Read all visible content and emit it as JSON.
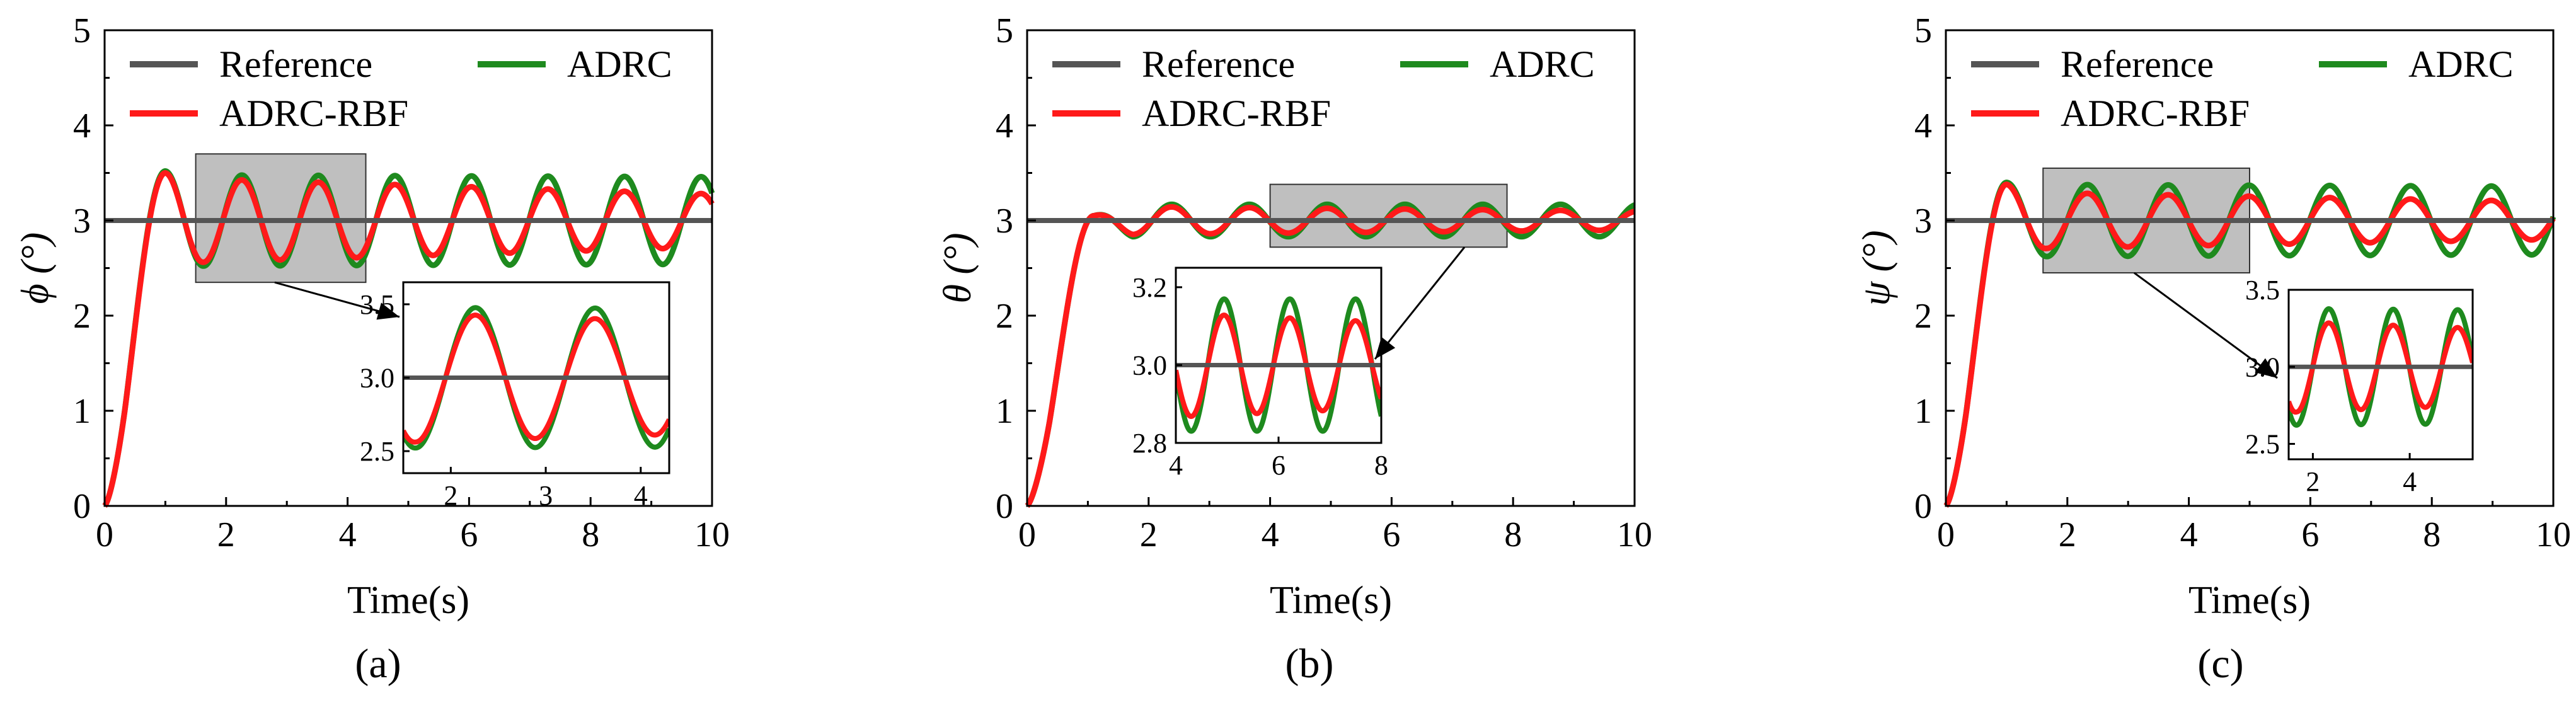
{
  "colors": {
    "reference": "#555555",
    "adrc": "#1e8a1e",
    "adrc_rbf": "#ff1a1a",
    "highlight": "#bfbfbf"
  },
  "chart_data": [
    {
      "id": "a",
      "panel_label": "(a)",
      "type": "line",
      "title": "",
      "xlabel": "Time(s)",
      "ylabel": "ϕ (°)",
      "xlim": [
        0,
        10
      ],
      "ylim": [
        0,
        5
      ],
      "xticks": [
        0,
        2,
        4,
        6,
        8,
        10
      ],
      "yticks": [
        0,
        1,
        2,
        3,
        4,
        5
      ],
      "legend": {
        "placement": "top",
        "entries": [
          "Reference",
          "ADRC",
          "ADRC-RBF"
        ]
      },
      "reference_value": 3.0,
      "series": [
        {
          "name": "Reference",
          "color": "#555555",
          "model": "constant",
          "value": 3.0
        },
        {
          "name": "ADRC",
          "color": "#1e8a1e",
          "model": "oscillation",
          "rise_time": 1.0,
          "peak": 3.52,
          "period": 1.26,
          "amplitude_start": 0.48,
          "amplitude_end": 0.46,
          "peak_time": 1.0
        },
        {
          "name": "ADRC-RBF",
          "color": "#ff1a1a",
          "model": "oscillation",
          "rise_time": 1.0,
          "peak": 3.5,
          "period": 1.26,
          "amplitude_start": 0.45,
          "amplitude_end": 0.28,
          "peak_time": 1.0
        }
      ],
      "highlight_region": {
        "x": [
          1.5,
          4.3
        ],
        "y": [
          2.35,
          3.7
        ]
      },
      "inset": {
        "xlim": [
          1.5,
          4.3
        ],
        "ylim": [
          2.35,
          3.65
        ],
        "xticks": [
          2,
          3,
          4
        ],
        "yticks": [
          2.5,
          3.0,
          3.5
        ],
        "ytick_labels": [
          "2.5",
          "3.0",
          "3.5"
        ]
      }
    },
    {
      "id": "b",
      "panel_label": "(b)",
      "type": "line",
      "title": "",
      "xlabel": "Time(s)",
      "ylabel": "θ (°)",
      "xlim": [
        0,
        10
      ],
      "ylim": [
        0,
        5
      ],
      "xticks": [
        0,
        2,
        4,
        6,
        8,
        10
      ],
      "yticks": [
        0,
        1,
        2,
        3,
        4,
        5
      ],
      "legend": {
        "placement": "top",
        "entries": [
          "Reference",
          "ADRC",
          "ADRC-RBF"
        ]
      },
      "reference_value": 3.0,
      "series": [
        {
          "name": "Reference",
          "color": "#555555",
          "model": "constant",
          "value": 3.0
        },
        {
          "name": "ADRC",
          "color": "#1e8a1e",
          "model": "oscillation",
          "rise_time": 1.1,
          "peak": 3.05,
          "period": 1.28,
          "amplitude_start": 0.17,
          "amplitude_end": 0.17,
          "peak_time": 1.1
        },
        {
          "name": "ADRC-RBF",
          "color": "#ff1a1a",
          "model": "oscillation",
          "rise_time": 1.1,
          "peak": 3.05,
          "period": 1.28,
          "amplitude_start": 0.15,
          "amplitude_end": 0.1,
          "peak_time": 1.1
        }
      ],
      "highlight_region": {
        "x": [
          4.0,
          7.9
        ],
        "y": [
          2.72,
          3.38
        ]
      },
      "inset": {
        "xlim": [
          4,
          8
        ],
        "ylim": [
          2.8,
          3.25
        ],
        "xticks": [
          4,
          6,
          8
        ],
        "yticks": [
          2.8,
          3.0,
          3.2
        ],
        "ytick_labels": [
          "2.8",
          "3.0",
          "3.2"
        ]
      }
    },
    {
      "id": "c",
      "panel_label": "(c)",
      "type": "line",
      "title": "",
      "xlabel": "Time(s)",
      "ylabel": "ψ (°)",
      "xlim": [
        0,
        10
      ],
      "ylim": [
        0,
        5
      ],
      "xticks": [
        0,
        2,
        4,
        6,
        8,
        10
      ],
      "yticks": [
        0,
        1,
        2,
        3,
        4,
        5
      ],
      "legend": {
        "placement": "top",
        "entries": [
          "Reference",
          "ADRC",
          "ADRC-RBF"
        ]
      },
      "reference_value": 3.0,
      "series": [
        {
          "name": "Reference",
          "color": "#555555",
          "model": "constant",
          "value": 3.0
        },
        {
          "name": "ADRC",
          "color": "#1e8a1e",
          "model": "oscillation",
          "rise_time": 1.0,
          "peak": 3.4,
          "period": 1.33,
          "amplitude_start": 0.38,
          "amplitude_end": 0.36,
          "peak_time": 1.0
        },
        {
          "name": "ADRC-RBF",
          "color": "#ff1a1a",
          "model": "oscillation",
          "rise_time": 1.0,
          "peak": 3.38,
          "period": 1.33,
          "amplitude_start": 0.3,
          "amplitude_end": 0.2,
          "peak_time": 1.0
        }
      ],
      "highlight_region": {
        "x": [
          1.6,
          5.0
        ],
        "y": [
          2.45,
          3.55
        ]
      },
      "inset": {
        "xlim": [
          1.5,
          5.3
        ],
        "ylim": [
          2.4,
          3.5
        ],
        "xticks": [
          2,
          4
        ],
        "yticks": [
          2.5,
          3.0,
          3.5
        ],
        "ytick_labels": [
          "2.5",
          "3.0",
          "3.5"
        ]
      }
    }
  ]
}
